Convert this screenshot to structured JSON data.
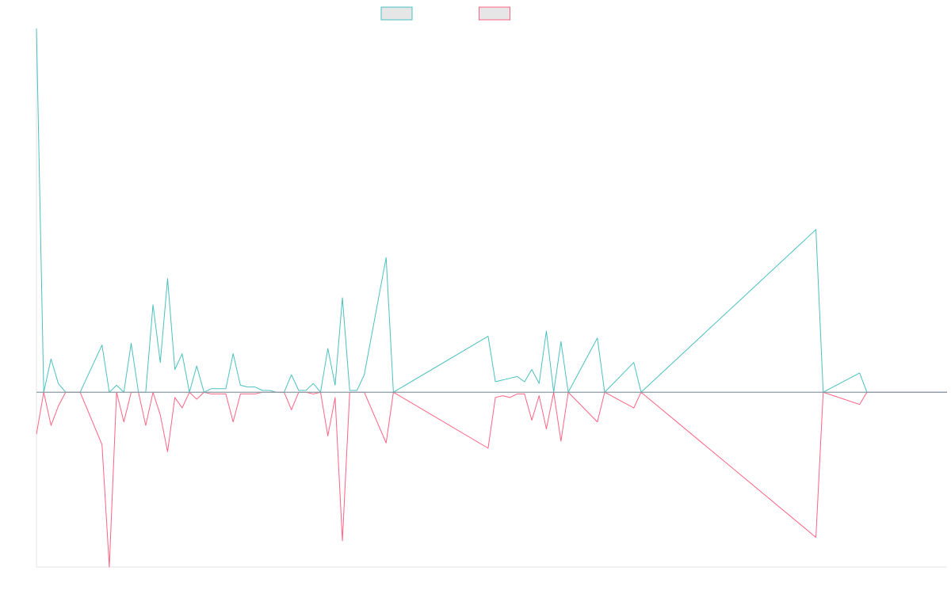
{
  "chart_data": {
    "type": "line",
    "colors": {
      "series_a": "#4bc0c0",
      "series_b": "#ff6384",
      "baseline": "#8a9ba3",
      "axis": "#e5e5e5",
      "legend_fill": "#e6e6e6"
    },
    "legend_placement": "top-center",
    "grid": false,
    "ylim": [
      -1.0,
      2.08
    ],
    "series": [
      {
        "key": "a",
        "values": [
          [
            0,
            2.08
          ],
          [
            1,
            0.0
          ],
          [
            2,
            0.19
          ],
          [
            3,
            0.05
          ],
          [
            4,
            0.0
          ],
          [
            6,
            0.0
          ],
          [
            9,
            0.27
          ],
          [
            10,
            0.0
          ],
          [
            11,
            0.04
          ],
          [
            12,
            0.0
          ],
          [
            13,
            0.28
          ],
          [
            14,
            0.0
          ],
          [
            15,
            0.0
          ],
          [
            16,
            0.5
          ],
          [
            17,
            0.17
          ],
          [
            18,
            0.65
          ],
          [
            19,
            0.13
          ],
          [
            20,
            0.22
          ],
          [
            21,
            0.0
          ],
          [
            22,
            0.15
          ],
          [
            23,
            0.0
          ],
          [
            24,
            0.02
          ],
          [
            25,
            0.02
          ],
          [
            26,
            0.02
          ],
          [
            27,
            0.22
          ],
          [
            28,
            0.04
          ],
          [
            29,
            0.03
          ],
          [
            30,
            0.03
          ],
          [
            31,
            0.01
          ],
          [
            32,
            0.01
          ],
          [
            33,
            0.0
          ],
          [
            34,
            0.0
          ],
          [
            35,
            0.1
          ],
          [
            36,
            0.01
          ],
          [
            37,
            0.01
          ],
          [
            38,
            0.05
          ],
          [
            39,
            0.0
          ],
          [
            40,
            0.25
          ],
          [
            41,
            0.04
          ],
          [
            42,
            0.54
          ],
          [
            43,
            0.01
          ],
          [
            44,
            0.01
          ],
          [
            45,
            0.1
          ],
          [
            48,
            0.77
          ],
          [
            49,
            0.0
          ],
          [
            62,
            0.32
          ],
          [
            63,
            0.06
          ],
          [
            64,
            0.07
          ],
          [
            65,
            0.08
          ],
          [
            66,
            0.09
          ],
          [
            67,
            0.06
          ],
          [
            68,
            0.13
          ],
          [
            69,
            0.05
          ],
          [
            70,
            0.35
          ],
          [
            71,
            0.0
          ],
          [
            72,
            0.29
          ],
          [
            73,
            0.0
          ],
          [
            77,
            0.31
          ],
          [
            78,
            0.0
          ],
          [
            82,
            0.17
          ],
          [
            83,
            0.0
          ],
          [
            107,
            0.93
          ],
          [
            108,
            0.0
          ],
          [
            113,
            0.11
          ],
          [
            114,
            0.0
          ],
          [
            125,
            0.0
          ]
        ]
      },
      {
        "key": "b",
        "values": [
          [
            0,
            -0.24
          ],
          [
            1,
            0.0
          ],
          [
            2,
            -0.19
          ],
          [
            3,
            -0.08
          ],
          [
            4,
            0.0
          ],
          [
            6,
            0.0
          ],
          [
            9,
            -0.3
          ],
          [
            10,
            -1.0
          ],
          [
            11,
            0.0
          ],
          [
            12,
            -0.17
          ],
          [
            13,
            0.0
          ],
          [
            14,
            0.0
          ],
          [
            15,
            -0.19
          ],
          [
            16,
            0.0
          ],
          [
            17,
            -0.13
          ],
          [
            18,
            -0.34
          ],
          [
            19,
            -0.03
          ],
          [
            20,
            -0.09
          ],
          [
            21,
            0.0
          ],
          [
            22,
            -0.04
          ],
          [
            23,
            0.0
          ],
          [
            24,
            -0.01
          ],
          [
            25,
            -0.01
          ],
          [
            26,
            -0.01
          ],
          [
            27,
            -0.17
          ],
          [
            28,
            -0.01
          ],
          [
            29,
            -0.01
          ],
          [
            30,
            -0.01
          ],
          [
            31,
            0.0
          ],
          [
            32,
            0.0
          ],
          [
            33,
            0.0
          ],
          [
            34,
            0.0
          ],
          [
            35,
            -0.1
          ],
          [
            36,
            0.0
          ],
          [
            37,
            0.0
          ],
          [
            38,
            -0.01
          ],
          [
            39,
            0.0
          ],
          [
            40,
            -0.25
          ],
          [
            41,
            -0.03
          ],
          [
            42,
            -0.85
          ],
          [
            43,
            0.0
          ],
          [
            44,
            0.0
          ],
          [
            45,
            0.0
          ],
          [
            48,
            -0.29
          ],
          [
            49,
            0.0
          ],
          [
            62,
            -0.32
          ],
          [
            63,
            -0.03
          ],
          [
            64,
            -0.02
          ],
          [
            65,
            -0.03
          ],
          [
            66,
            -0.01
          ],
          [
            67,
            -0.01
          ],
          [
            68,
            -0.16
          ],
          [
            69,
            -0.02
          ],
          [
            70,
            -0.21
          ],
          [
            71,
            0.0
          ],
          [
            72,
            -0.28
          ],
          [
            73,
            0.0
          ],
          [
            77,
            -0.17
          ],
          [
            78,
            0.0
          ],
          [
            82,
            -0.09
          ],
          [
            83,
            0.0
          ],
          [
            107,
            -0.83
          ],
          [
            108,
            0.0
          ],
          [
            113,
            -0.07
          ],
          [
            114,
            0.0
          ],
          [
            125,
            0.0
          ]
        ]
      }
    ]
  }
}
